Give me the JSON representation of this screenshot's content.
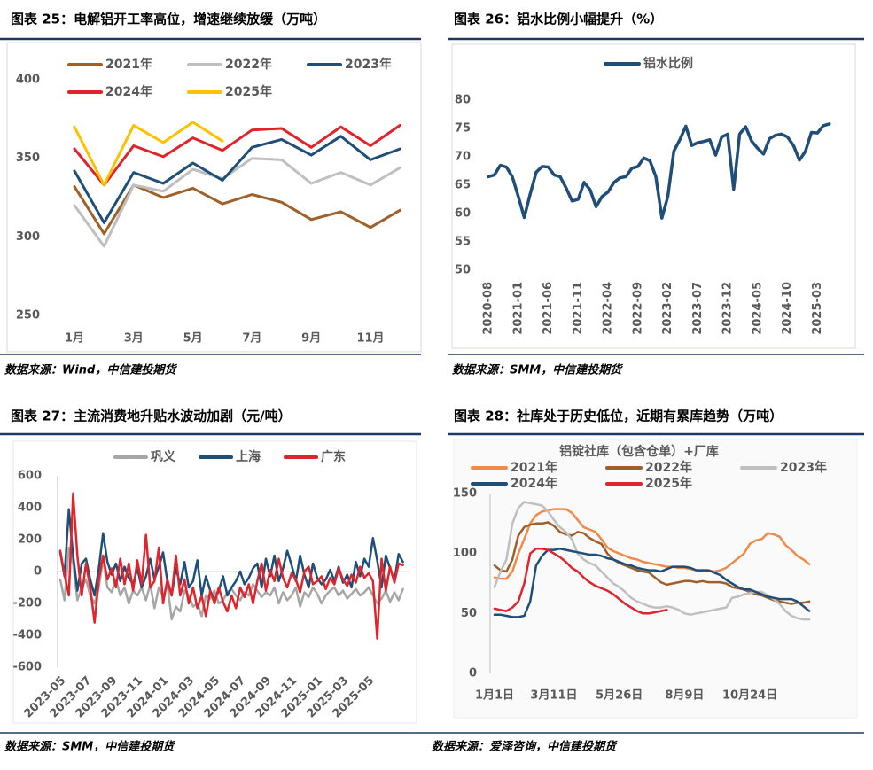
{
  "chart_data": [
    {
      "type": "line",
      "title": "图表 25：电解铝开工率高位，增速继续放缓（万吨）",
      "source": "数据来源：Wind，中信建投期货",
      "categories": [
        "1月",
        null,
        "3月",
        null,
        "5月",
        null,
        "7月",
        null,
        "9月",
        null,
        "11月",
        null
      ],
      "ylim": [
        250,
        400
      ],
      "yticks": [
        250,
        300,
        350,
        400
      ],
      "series": [
        {
          "name": "2021年",
          "color": "#a0602a",
          "values": [
            332,
            302,
            333,
            325,
            331,
            321,
            327,
            322,
            311,
            316,
            306,
            317
          ]
        },
        {
          "name": "2022年",
          "color": "#bfbfbf",
          "values": [
            320,
            294,
            333,
            329,
            343,
            337,
            350,
            349,
            334,
            341,
            333,
            344
          ]
        },
        {
          "name": "2023年",
          "color": "#1f4e79",
          "values": [
            342,
            309,
            341,
            334,
            347,
            336,
            357,
            362,
            352,
            364,
            349,
            356
          ]
        },
        {
          "name": "2024年",
          "color": "#e0242b",
          "values": [
            356,
            333,
            358,
            351,
            363,
            355,
            368,
            369,
            357,
            370,
            358,
            371
          ]
        },
        {
          "name": "2025年",
          "color": "#ffc000",
          "values": [
            370,
            333,
            371,
            360,
            373,
            361,
            null,
            null,
            null,
            null,
            null,
            null
          ]
        }
      ]
    },
    {
      "type": "line",
      "title": "图表 26：铝水比例小幅提升（%）",
      "source": "数据来源：SMM，中信建投期货",
      "categories": [
        "2020-08",
        "2020-09",
        "2020-10",
        "2020-11",
        "2020-12",
        "2021-01",
        "2021-02",
        "2021-03",
        "2021-04",
        "2021-05",
        "2021-06",
        "2021-07",
        "2021-08",
        "2021-09",
        "2021-10",
        "2021-11",
        "2021-12",
        "2022-01",
        "2022-02",
        "2022-03",
        "2022-04",
        "2022-05",
        "2022-06",
        "2022-07",
        "2022-08",
        "2022-09",
        "2022-10",
        "2022-11",
        "2022-12",
        "2023-01",
        "2023-02",
        "2023-03",
        "2023-04",
        "2023-05",
        "2023-06",
        "2023-07",
        "2023-08",
        "2023-09",
        "2023-10",
        "2023-11",
        "2023-12",
        "2024-01",
        "2024-02",
        "2024-03",
        "2024-04",
        "2024-05",
        "2024-06",
        "2024-07",
        "2024-08",
        "2024-09",
        "2024-10",
        "2024-11",
        "2024-12",
        "2025-01",
        "2025-02",
        "2025-03",
        "2025-04",
        "2025-05"
      ],
      "ylim": [
        50,
        80
      ],
      "yticks": [
        50,
        55,
        60,
        65,
        70,
        75,
        80
      ],
      "series": [
        {
          "name": "铝水比例",
          "color": "#1f4e79",
          "values": [
            66.5,
            66.8,
            68.5,
            68.2,
            66.5,
            63,
            59.3,
            63.5,
            67.3,
            68.3,
            68.2,
            66.8,
            66.5,
            64.5,
            62.2,
            62.5,
            65.5,
            64.2,
            61.2,
            63,
            63.8,
            65.5,
            66.3,
            66.5,
            68,
            68.3,
            69.8,
            69.3,
            66.5,
            59.2,
            63,
            71,
            73,
            75.4,
            72,
            72.5,
            72.7,
            73,
            70.3,
            73.5,
            74,
            64.3,
            74,
            75.3,
            72.8,
            71.5,
            70.5,
            73.2,
            73.8,
            74,
            73.5,
            72,
            69.4,
            71,
            74.3,
            74.2,
            75.5,
            75.8
          ]
        }
      ]
    },
    {
      "type": "line",
      "title": "图表 27：主流消费地升贴水波动加剧（元/吨）",
      "source": "数据来源：SMM，中信建投期货",
      "categories": [
        "2023-05",
        null,
        null,
        null,
        null,
        null,
        "2023-07",
        null,
        null,
        null,
        null,
        null,
        "2023-09",
        null,
        null,
        null,
        null,
        null,
        "2023-11",
        null,
        null,
        null,
        null,
        null,
        "2024-01",
        null,
        null,
        null,
        null,
        null,
        "2024-03",
        null,
        null,
        null,
        null,
        null,
        "2024-05",
        null,
        null,
        null,
        null,
        null,
        "2024-07",
        null,
        null,
        null,
        null,
        null,
        "2024-09",
        null,
        null,
        null,
        null,
        null,
        "2024-11",
        null,
        null,
        null,
        null,
        null,
        "2025-01",
        null,
        null,
        null,
        null,
        null,
        "2025-03",
        null,
        null,
        null,
        null,
        null,
        "2025-05",
        null,
        null,
        null,
        null,
        null,
        null,
        null,
        null
      ],
      "ylim": [
        -600,
        600
      ],
      "yticks": [
        -600,
        -400,
        -200,
        0,
        200,
        400,
        600
      ],
      "series": [
        {
          "name": "巩义",
          "color": "#a6a6a6",
          "values": [
            -50,
            -180,
            150,
            50,
            -180,
            -100,
            -50,
            -150,
            -200,
            -100,
            80,
            -100,
            -130,
            -50,
            -150,
            -100,
            -200,
            -120,
            -150,
            -100,
            -180,
            -80,
            -230,
            -100,
            -160,
            -80,
            -300,
            -220,
            -250,
            -120,
            -150,
            -220,
            -200,
            -280,
            -150,
            -170,
            -120,
            -200,
            -180,
            -130,
            -110,
            -150,
            -180,
            -130,
            -150,
            -80,
            -120,
            -160,
            -130,
            -150,
            -100,
            -200,
            -130,
            -180,
            -150,
            -100,
            -220,
            -130,
            -160,
            -100,
            -140,
            -200,
            -150,
            -120,
            -100,
            -150,
            -120,
            -170,
            -140,
            -110,
            -150,
            -130,
            -100,
            -150,
            -200,
            -170,
            -120,
            -190,
            -130,
            -180,
            -110
          ]
        },
        {
          "name": "上海",
          "color": "#1f4e79",
          "values": [
            120,
            -30,
            390,
            100,
            -120,
            50,
            80,
            -50,
            -150,
            20,
            240,
            60,
            -20,
            50,
            -60,
            30,
            -40,
            -80,
            20,
            -100,
            -30,
            80,
            -50,
            30,
            120,
            -60,
            -150,
            20,
            -80,
            60,
            -100,
            -60,
            70,
            -150,
            -30,
            -120,
            -180,
            -120,
            -30,
            -150,
            -100,
            -60,
            0,
            -80,
            -40,
            20,
            50,
            -100,
            80,
            -30,
            100,
            -60,
            20,
            130,
            40,
            -60,
            100,
            -20,
            -100,
            50,
            -40,
            -80,
            -50,
            10,
            -60,
            30,
            -70,
            -20,
            -100,
            60,
            -30,
            80,
            30,
            210,
            70,
            -100,
            100,
            20,
            -60,
            110,
            60
          ]
        },
        {
          "name": "广东",
          "color": "#e0242b",
          "values": [
            130,
            -20,
            -150,
            490,
            100,
            -150,
            50,
            -100,
            -320,
            -50,
            100,
            -50,
            20,
            -100,
            80,
            -80,
            50,
            -120,
            70,
            -80,
            230,
            -100,
            -60,
            150,
            -200,
            -50,
            -150,
            100,
            -150,
            -50,
            -200,
            -100,
            -230,
            -150,
            -280,
            -120,
            -200,
            -100,
            -190,
            -250,
            -150,
            -230,
            -100,
            -160,
            -80,
            -200,
            -60,
            50,
            -120,
            10,
            -60,
            80,
            -40,
            -100,
            -10,
            -50,
            -130,
            0,
            30,
            -80,
            -60,
            -30,
            -110,
            -40,
            -80,
            20,
            -50,
            -90,
            -20,
            -70,
            30,
            -40,
            -10,
            -60,
            -420,
            80,
            -120,
            30,
            -70,
            50,
            40
          ]
        }
      ]
    },
    {
      "type": "line",
      "title": "图表 28：社库处于历史低位，近期有累库趋势（万吨）",
      "subtitle": "铝锭社库（包含仓单）+厂库",
      "source": "数据来源：爱泽咨询，中信建投期货",
      "categories": [
        "1月1日",
        null,
        null,
        null,
        null,
        null,
        null,
        null,
        null,
        null,
        "3月11日",
        null,
        null,
        null,
        null,
        null,
        null,
        null,
        null,
        null,
        null,
        "5月26日",
        null,
        null,
        null,
        null,
        null,
        null,
        null,
        null,
        null,
        null,
        "8月9日",
        null,
        null,
        null,
        null,
        null,
        null,
        null,
        null,
        null,
        null,
        "10月24日",
        null,
        null,
        null,
        null,
        null,
        null,
        null,
        null,
        null,
        null
      ],
      "ylim": [
        0,
        150
      ],
      "yticks": [
        0,
        50,
        100,
        150
      ],
      "series": [
        {
          "name": "2021年",
          "color": "#f08a4b",
          "values": [
            80,
            79,
            79,
            85,
            100,
            112,
            125,
            132,
            135,
            136,
            137,
            137,
            137,
            134,
            128,
            122,
            120,
            118,
            112,
            105,
            102,
            100,
            98,
            96,
            95,
            93,
            92,
            91,
            90,
            89,
            89,
            88,
            88,
            87,
            86,
            86,
            86,
            85,
            86,
            88,
            92,
            96,
            100,
            108,
            111,
            112,
            117,
            116,
            114,
            107,
            103,
            98,
            95,
            91
          ]
        },
        {
          "name": "2022年",
          "color": "#9e5f2c",
          "values": [
            90,
            86,
            85,
            95,
            115,
            122,
            124,
            125,
            125,
            126,
            123,
            118,
            116,
            115,
            118,
            117,
            113,
            110,
            108,
            100,
            95,
            92,
            90,
            88,
            86,
            85,
            84,
            80,
            76,
            74,
            75,
            76,
            77,
            77,
            76,
            77,
            76,
            76,
            76,
            75,
            72,
            71,
            70,
            68,
            66,
            65,
            63,
            61,
            60,
            59,
            58,
            59,
            59,
            60
          ]
        },
        {
          "name": "2023年",
          "color": "#bfbfbf",
          "values": [
            72,
            85,
            95,
            125,
            138,
            143,
            142,
            141,
            140,
            135,
            128,
            122,
            118,
            112,
            100,
            95,
            92,
            90,
            85,
            80,
            75,
            72,
            68,
            63,
            60,
            58,
            56,
            55,
            55,
            56,
            55,
            53,
            50,
            49,
            50,
            51,
            52,
            53,
            54,
            55,
            63,
            64,
            66,
            67,
            68,
            68,
            65,
            62,
            58,
            52,
            48,
            46,
            45,
            45
          ]
        },
        {
          "name": "2024年",
          "color": "#1f4e79",
          "values": [
            49,
            49,
            48,
            47,
            47,
            48,
            60,
            90,
            98,
            103,
            103,
            104,
            103,
            102,
            101,
            100,
            99,
            99,
            98,
            96,
            95,
            93,
            91,
            90,
            88,
            87,
            86,
            86,
            85,
            87,
            89,
            89,
            89,
            88,
            86,
            86,
            86,
            84,
            82,
            78,
            75,
            72,
            70,
            70,
            68,
            66,
            64,
            63,
            62,
            62,
            62,
            60,
            56,
            52
          ]
        },
        {
          "name": "2025年",
          "color": "#e0242b",
          "values": [
            54,
            53,
            52,
            55,
            60,
            75,
            100,
            104,
            104,
            103,
            100,
            97,
            93,
            88,
            85,
            80,
            76,
            73,
            71,
            69,
            66,
            62,
            58,
            55,
            52,
            50,
            50,
            51,
            52,
            53,
            null,
            null,
            null,
            null,
            null,
            null,
            null,
            null,
            null,
            null,
            null,
            null,
            null,
            null,
            null,
            null,
            null,
            null,
            null,
            null,
            null,
            null,
            null,
            null
          ]
        }
      ]
    }
  ]
}
